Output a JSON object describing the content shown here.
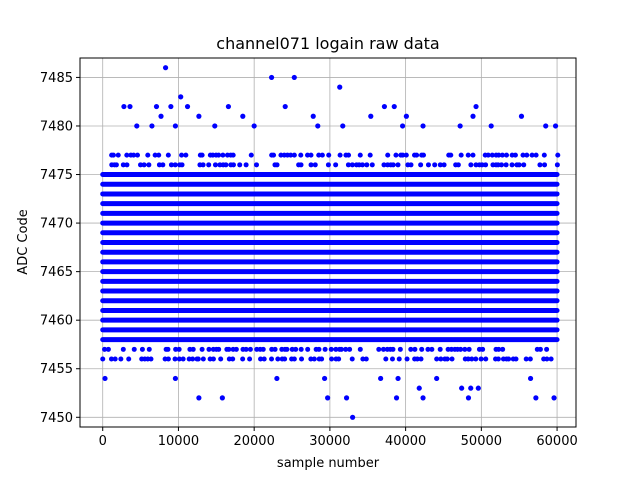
{
  "chart_data": {
    "type": "scatter",
    "title": "channel071 logain raw data",
    "xlabel": "sample number",
    "ylabel": "ADC Code",
    "xlim": [
      -3000,
      62500
    ],
    "ylim": [
      7449,
      7487
    ],
    "xticks": [
      0,
      10000,
      20000,
      30000,
      40000,
      50000,
      60000
    ],
    "yticks": [
      7450,
      7455,
      7460,
      7465,
      7470,
      7475,
      7480,
      7485
    ],
    "grid": true,
    "marker_color": "#0000ff",
    "sample_range": [
      0,
      59999
    ],
    "dense_code_range": [
      7456,
      7477
    ],
    "series": [
      {
        "points": [
          [
            8300,
            7486
          ],
          [
            22300,
            7485
          ],
          [
            25300,
            7485
          ],
          [
            31300,
            7484
          ],
          [
            10300,
            7483
          ],
          [
            2800,
            7482
          ],
          [
            3600,
            7482
          ],
          [
            7100,
            7482
          ],
          [
            9000,
            7482
          ],
          [
            11200,
            7482
          ],
          [
            16600,
            7482
          ],
          [
            24100,
            7482
          ],
          [
            37200,
            7482
          ],
          [
            38500,
            7482
          ],
          [
            49300,
            7482
          ],
          [
            4500,
            7480
          ],
          [
            6500,
            7480
          ],
          [
            9600,
            7480
          ],
          [
            14800,
            7480
          ],
          [
            20000,
            7480
          ],
          [
            28400,
            7480
          ],
          [
            31700,
            7480
          ],
          [
            39600,
            7480
          ],
          [
            42300,
            7480
          ],
          [
            47200,
            7480
          ],
          [
            51300,
            7480
          ],
          [
            58500,
            7480
          ],
          [
            59800,
            7480
          ],
          [
            7700,
            7481
          ],
          [
            12700,
            7481
          ],
          [
            18500,
            7481
          ],
          [
            27800,
            7481
          ],
          [
            35400,
            7481
          ],
          [
            40100,
            7481
          ],
          [
            48900,
            7481
          ],
          [
            55300,
            7481
          ],
          [
            300,
            7454
          ],
          [
            9600,
            7454
          ],
          [
            23000,
            7454
          ],
          [
            29300,
            7454
          ],
          [
            36700,
            7454
          ],
          [
            39000,
            7454
          ],
          [
            44100,
            7454
          ],
          [
            56500,
            7454
          ],
          [
            12700,
            7452
          ],
          [
            15800,
            7452
          ],
          [
            29700,
            7452
          ],
          [
            32200,
            7452
          ],
          [
            38800,
            7452
          ],
          [
            42300,
            7452
          ],
          [
            48300,
            7452
          ],
          [
            57200,
            7452
          ],
          [
            59600,
            7452
          ],
          [
            41800,
            7453
          ],
          [
            47400,
            7453
          ],
          [
            48600,
            7453
          ],
          [
            49600,
            7453
          ],
          [
            33000,
            7450
          ]
        ]
      }
    ]
  }
}
